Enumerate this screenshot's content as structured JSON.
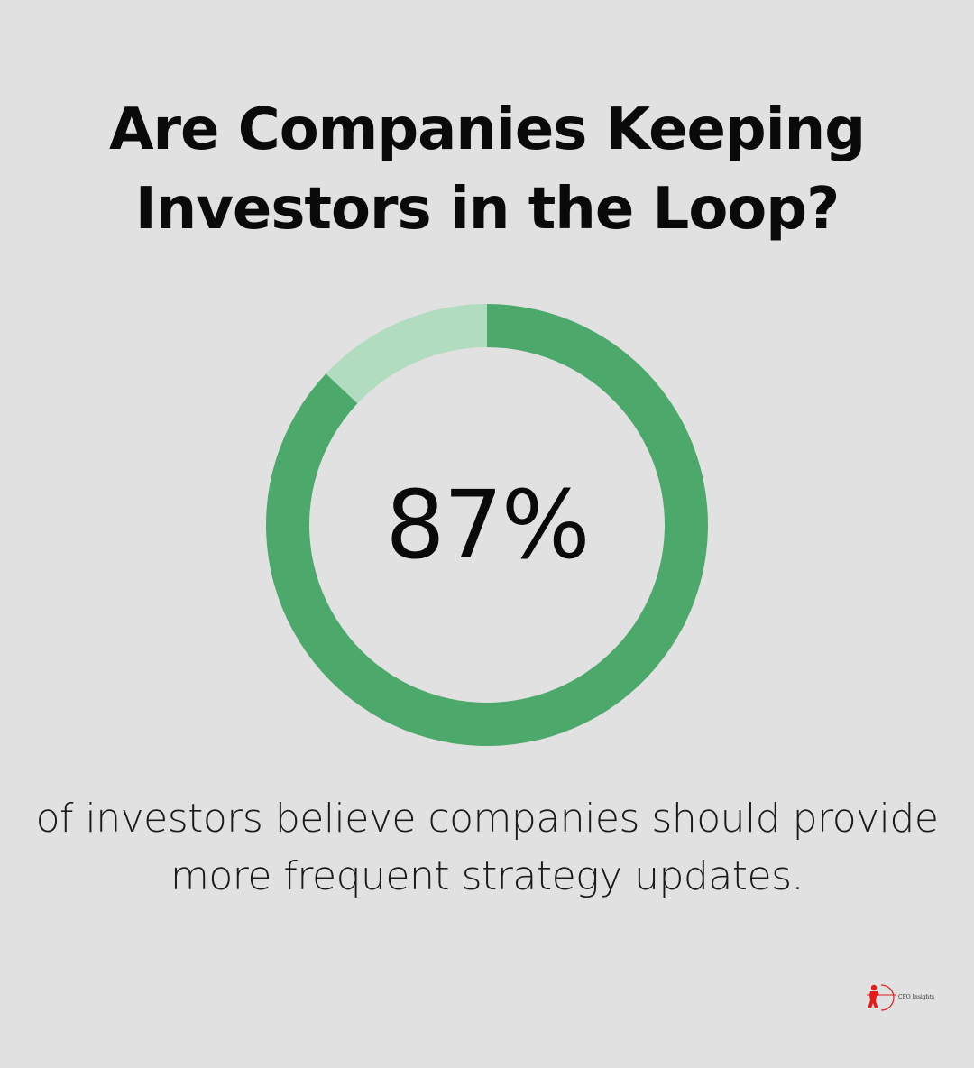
{
  "title_line1": "Are Companies Keeping",
  "title_line2": "Investors in the Loop?",
  "chart_data": {
    "type": "pie",
    "title": "Are Companies Keeping Investors in the Loop?",
    "values": [
      87,
      13
    ],
    "colors": [
      "#4da86c",
      "#b1dcc0"
    ],
    "center_label": "87%"
  },
  "description_line1": "of investors believe companies should provide",
  "description_line2": "more frequent strategy updates.",
  "brand": {
    "name": "CFO Insights",
    "logo_color": "#e41b1b"
  },
  "colors": {
    "background": "#e0e1e0",
    "text": "#0a0a0a"
  }
}
